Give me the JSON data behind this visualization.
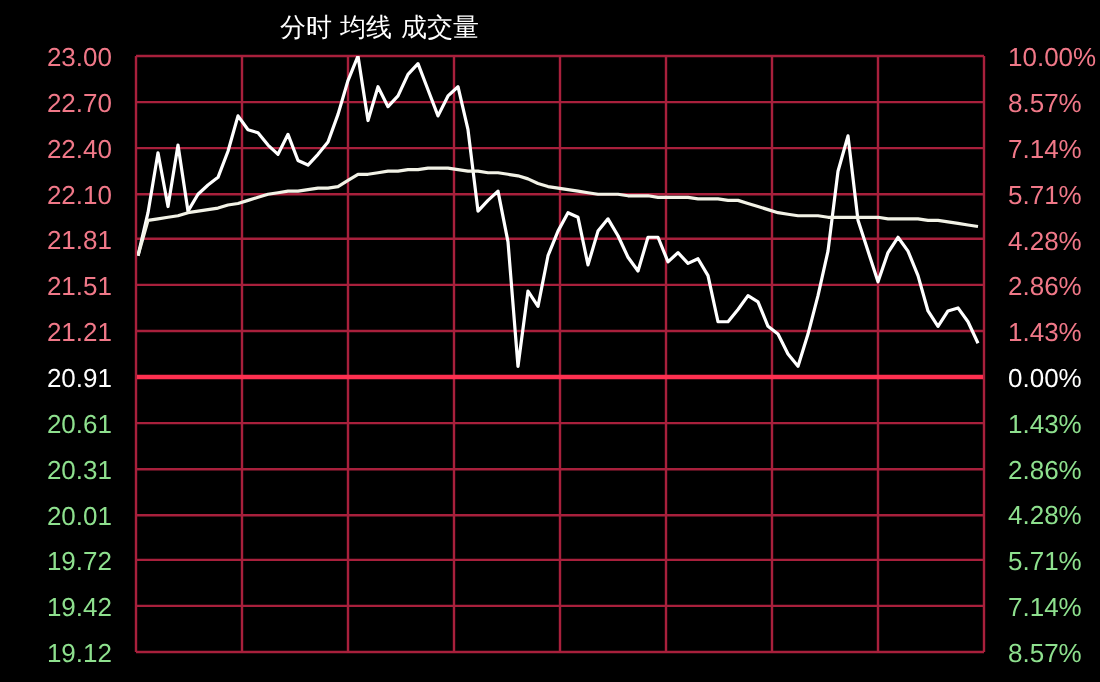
{
  "chart_data": {
    "type": "line",
    "title": "分时 均线 成交量",
    "categories": [
      null,
      null,
      null,
      null,
      null,
      null,
      null,
      null,
      null,
      null,
      null,
      null,
      null,
      null,
      null,
      null,
      null,
      null,
      null,
      null,
      null,
      null,
      null,
      null,
      null,
      null,
      null,
      null,
      null,
      null,
      null,
      null,
      null,
      null,
      null,
      null,
      null,
      null,
      null,
      null,
      null,
      null,
      null,
      null,
      null,
      null,
      null,
      null,
      null,
      null,
      null,
      null,
      null,
      null,
      null,
      null,
      null,
      null,
      null,
      null,
      null,
      null,
      null,
      null,
      null,
      null,
      null,
      null,
      null,
      null,
      null,
      null,
      null,
      null,
      null,
      null,
      null,
      null,
      null,
      null,
      null,
      null,
      null,
      null,
      null
    ],
    "series": [
      {
        "color": "#ffffff",
        "values": [
          21.7,
          21.98,
          22.37,
          22.02,
          22.42,
          21.99,
          22.1,
          22.16,
          22.21,
          22.38,
          22.61,
          22.52,
          22.5,
          22.42,
          22.36,
          22.49,
          22.32,
          22.29,
          22.36,
          22.44,
          22.62,
          22.84,
          23.0,
          22.58,
          22.8,
          22.67,
          22.74,
          22.88,
          22.95,
          22.78,
          22.61,
          22.74,
          22.8,
          22.52,
          21.99,
          22.06,
          22.12,
          21.79,
          20.98,
          21.47,
          21.37,
          21.7,
          21.86,
          21.98,
          21.95,
          21.64,
          21.86,
          21.94,
          21.83,
          21.69,
          21.6,
          21.82,
          21.82,
          21.66,
          21.72,
          21.65,
          21.68,
          21.57,
          21.27,
          21.27,
          21.35,
          21.44,
          21.4,
          21.24,
          21.19,
          21.06,
          20.98,
          21.19,
          21.44,
          21.73,
          22.25,
          22.48,
          21.93,
          21.73,
          21.53,
          21.72,
          21.82,
          21.73,
          21.57,
          21.34,
          21.24,
          21.34,
          21.36,
          21.27,
          21.13
        ]
      },
      {
        "color": "#f2f2e6",
        "values": [
          21.7,
          21.93,
          21.94,
          21.95,
          21.96,
          21.98,
          21.99,
          22.0,
          22.01,
          22.03,
          22.04,
          22.06,
          22.08,
          22.1,
          22.11,
          22.12,
          22.12,
          22.13,
          22.14,
          22.14,
          22.15,
          22.19,
          22.23,
          22.23,
          22.24,
          22.25,
          22.25,
          22.26,
          22.26,
          22.27,
          22.27,
          22.27,
          22.26,
          22.25,
          22.25,
          22.24,
          22.24,
          22.23,
          22.22,
          22.2,
          22.17,
          22.15,
          22.14,
          22.13,
          22.12,
          22.11,
          22.1,
          22.1,
          22.1,
          22.09,
          22.09,
          22.09,
          22.08,
          22.08,
          22.08,
          22.08,
          22.07,
          22.07,
          22.07,
          22.06,
          22.06,
          22.04,
          22.02,
          22.0,
          21.98,
          21.97,
          21.96,
          21.96,
          21.96,
          21.95,
          21.95,
          21.95,
          21.95,
          21.95,
          21.95,
          21.94,
          21.94,
          21.94,
          21.94,
          21.93,
          21.93,
          21.92,
          21.91,
          21.9,
          21.89
        ]
      }
    ],
    "ylim": [
      19.12,
      23.0
    ],
    "yticks": [
      {
        "value": 23,
        "label": "23.00"
      },
      {
        "value": 22.7,
        "label": "22.70"
      },
      {
        "value": 22.4,
        "label": "22.40"
      },
      {
        "value": 22.1,
        "label": "22.10"
      },
      21.81,
      21.51,
      21.21,
      20.91,
      20.61,
      20.31,
      20.01,
      19.72,
      19.42,
      19.12
    ],
    "y2lim": [
      -8.57,
      10.0
    ],
    "y2ticks": [
      {
        "value": 10.0,
        "label": "10.00%"
      },
      {
        "value": 8.57,
        "label": "8.57%"
      },
      {
        "value": 7.14,
        "label": "7.14%"
      },
      {
        "value": 5.71,
        "label": "5.71%"
      },
      {
        "value": 4.28,
        "label": "4.28%"
      },
      {
        "value": 2.86,
        "label": "2.86%"
      },
      {
        "value": 1.43,
        "label": "1.43%"
      },
      {
        "value": 0,
        "label": "0.00%"
      },
      {
        "value": -1.43,
        "label": "1.43%"
      },
      {
        "value": -2.86,
        "label": "2.86%"
      },
      {
        "value": -4.28,
        "label": "4.28%"
      },
      {
        "value": -5.71,
        "label": "5.71%"
      },
      {
        "value": -7.14,
        "label": "7.14%"
      },
      {
        "value": -8.57,
        "label": "8.57%"
      }
    ],
    "ref_lines": [
      {
        "axis": "y",
        "value": 20.91,
        "color": "#ff3050"
      }
    ],
    "grid": true,
    "legend": false
  }
}
